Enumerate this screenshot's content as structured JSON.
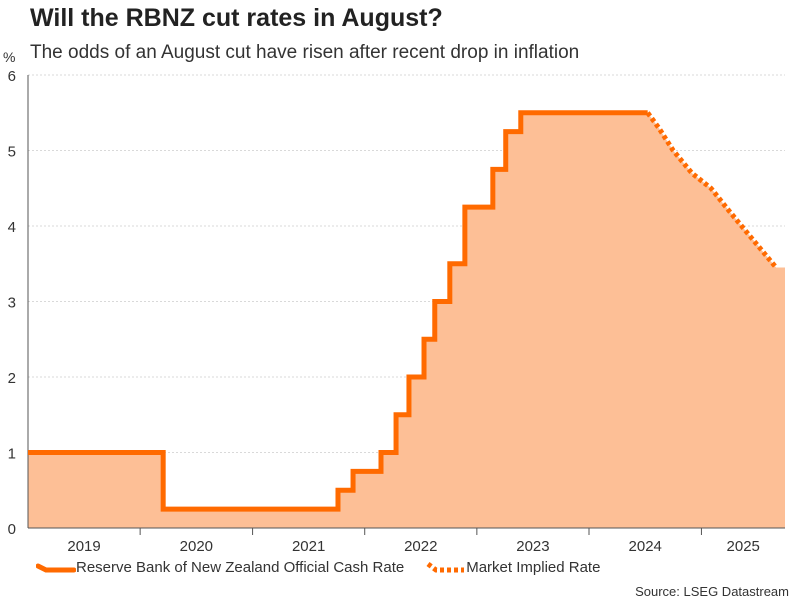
{
  "title": "Will the RBNZ cut rates in August?",
  "subtitle": "The odds of an August cut have risen after recent drop in inflation",
  "source": "Source: LSEG Datastream",
  "colors": {
    "line": "#ff6a00",
    "fill": "#fdbf96",
    "grid": "#d9d9d9",
    "axis": "#555555"
  },
  "chart_data": {
    "type": "line",
    "ylabel": "%",
    "ylim": [
      0,
      6
    ],
    "yticks": [
      0,
      1,
      2,
      3,
      4,
      5,
      6
    ],
    "xlim": [
      "2019-01-01",
      "2025-09-30"
    ],
    "xticks": [
      "2019",
      "2020",
      "2021",
      "2022",
      "2023",
      "2024",
      "2025"
    ],
    "grid": true,
    "legend_position": "bottom",
    "series": [
      {
        "name": "Reserve Bank of New Zealand Official Cash Rate",
        "style": "solid-step",
        "points": [
          [
            "2019-01-01",
            1.0
          ],
          [
            "2020-03-16",
            0.25
          ],
          [
            "2021-10-06",
            0.5
          ],
          [
            "2021-11-24",
            0.75
          ],
          [
            "2022-02-23",
            1.0
          ],
          [
            "2022-04-13",
            1.5
          ],
          [
            "2022-05-25",
            2.0
          ],
          [
            "2022-07-13",
            2.5
          ],
          [
            "2022-08-17",
            3.0
          ],
          [
            "2022-10-05",
            3.5
          ],
          [
            "2022-11-23",
            4.25
          ],
          [
            "2023-02-22",
            4.75
          ],
          [
            "2023-04-05",
            5.25
          ],
          [
            "2023-05-24",
            5.5
          ],
          [
            "2024-07-10",
            5.5
          ]
        ]
      },
      {
        "name": "Market Implied Rate",
        "style": "dotted",
        "points": [
          [
            "2024-07-10",
            5.5
          ],
          [
            "2024-08-15",
            5.3
          ],
          [
            "2024-10-01",
            5.0
          ],
          [
            "2024-12-01",
            4.7
          ],
          [
            "2025-02-01",
            4.5
          ],
          [
            "2025-04-01",
            4.2
          ],
          [
            "2025-06-01",
            3.9
          ],
          [
            "2025-09-01",
            3.45
          ]
        ]
      }
    ]
  }
}
